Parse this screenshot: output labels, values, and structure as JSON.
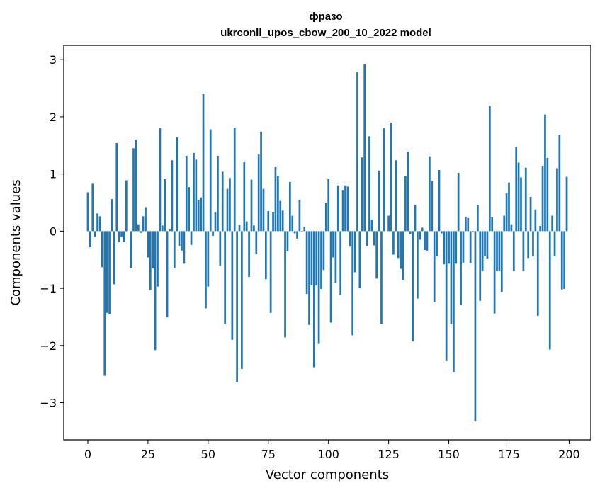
{
  "chart_data": {
    "type": "bar",
    "title": "фразо",
    "subtitle": "ukrconll_upos_cbow_200_10_2022 model",
    "xlabel": "Vector components",
    "ylabel": "Components values",
    "xlim": [
      -10,
      209
    ],
    "ylim": [
      -3.65,
      3.25
    ],
    "xticks": [
      0,
      25,
      50,
      75,
      100,
      125,
      150,
      175,
      200
    ],
    "yticks": [
      -3,
      -2,
      -1,
      0,
      1,
      2,
      3
    ],
    "ytick_labels": [
      "−3",
      "−2",
      "−1",
      "0",
      "1",
      "2",
      "3"
    ],
    "bar_color": "#1f77b4",
    "grid": false,
    "x": [
      0,
      1,
      2,
      3,
      4,
      5,
      6,
      7,
      8,
      9,
      10,
      11,
      12,
      13,
      14,
      15,
      16,
      17,
      18,
      19,
      20,
      21,
      22,
      23,
      24,
      25,
      26,
      27,
      28,
      29,
      30,
      31,
      32,
      33,
      34,
      35,
      36,
      37,
      38,
      39,
      40,
      41,
      42,
      43,
      44,
      45,
      46,
      47,
      48,
      49,
      50,
      51,
      52,
      53,
      54,
      55,
      56,
      57,
      58,
      59,
      60,
      61,
      62,
      63,
      64,
      65,
      66,
      67,
      68,
      69,
      70,
      71,
      72,
      73,
      74,
      75,
      76,
      77,
      78,
      79,
      80,
      81,
      82,
      83,
      84,
      85,
      86,
      87,
      88,
      89,
      90,
      91,
      92,
      93,
      94,
      95,
      96,
      97,
      98,
      99,
      100,
      101,
      102,
      103,
      104,
      105,
      106,
      107,
      108,
      109,
      110,
      111,
      112,
      113,
      114,
      115,
      116,
      117,
      118,
      119,
      120,
      121,
      122,
      123,
      124,
      125,
      126,
      127,
      128,
      129,
      130,
      131,
      132,
      133,
      134,
      135,
      136,
      137,
      138,
      139,
      140,
      141,
      142,
      143,
      144,
      145,
      146,
      147,
      148,
      149,
      150,
      151,
      152,
      153,
      154,
      155,
      156,
      157,
      158,
      159,
      160,
      161,
      162,
      163,
      164,
      165,
      166,
      167,
      168,
      169,
      170,
      171,
      172,
      173,
      174,
      175,
      176,
      177,
      178,
      179,
      180,
      181,
      182,
      183,
      184,
      185,
      186,
      187,
      188,
      189,
      190,
      191,
      192,
      193,
      194,
      195,
      196,
      197,
      198,
      199
    ],
    "values": [
      0.68,
      -0.28,
      0.83,
      -0.1,
      0.31,
      0.26,
      -0.63,
      -2.53,
      -1.43,
      -1.45,
      0.56,
      -0.93,
      1.54,
      -0.19,
      -0.1,
      -0.19,
      0.89,
      0.0,
      -0.64,
      1.45,
      1.6,
      0.12,
      -0.03,
      0.26,
      0.42,
      -0.46,
      -1.03,
      -0.65,
      -2.08,
      -0.97,
      1.8,
      0.1,
      0.91,
      -1.51,
      0.03,
      1.24,
      -0.65,
      1.64,
      -0.26,
      -0.34,
      -0.57,
      1.32,
      0.77,
      -0.24,
      1.37,
      1.25,
      0.55,
      0.59,
      2.4,
      -1.35,
      -0.97,
      1.78,
      -0.08,
      0.33,
      1.32,
      -0.6,
      1.04,
      -1.62,
      0.74,
      0.93,
      -1.9,
      1.8,
      -2.64,
      0.11,
      -2.41,
      1.21,
      0.17,
      -0.8,
      0.9,
      0.1,
      -0.4,
      1.34,
      1.74,
      0.74,
      -0.84,
      0.35,
      -1.43,
      0.33,
      1.12,
      0.96,
      0.53,
      0.36,
      -1.86,
      -0.35,
      0.86,
      0.27,
      -0.04,
      -0.13,
      0.55,
      -0.01,
      0.08,
      -1.1,
      -1.64,
      -0.95,
      -2.38,
      -0.95,
      -1.96,
      -1.01,
      -0.68,
      0.5,
      0.91,
      -1.6,
      -0.46,
      -0.9,
      0.8,
      -1.12,
      0.72,
      0.8,
      0.78,
      -0.27,
      -1.82,
      -0.72,
      2.78,
      -1.0,
      1.29,
      2.92,
      -0.26,
      1.66,
      0.2,
      -0.25,
      -0.83,
      1.06,
      -1.62,
      1.8,
      0.0,
      0.27,
      1.9,
      -0.41,
      1.24,
      -0.47,
      -0.66,
      -0.85,
      0.96,
      1.39,
      -0.05,
      -1.93,
      0.46,
      -1.18,
      -0.15,
      0.06,
      -0.33,
      -0.34,
      1.31,
      0.88,
      -1.24,
      -0.44,
      1.07,
      -0.04,
      -0.58,
      -2.26,
      -0.57,
      -1.63,
      -2.46,
      -0.57,
      1.02,
      -1.29,
      -0.55,
      0.25,
      0.23,
      -0.56,
      -0.02,
      -3.33,
      0.46,
      -1.22,
      -0.7,
      -0.43,
      -0.48,
      2.19,
      0.24,
      -1.44,
      -0.7,
      -0.69,
      -1.06,
      0.27,
      0.66,
      0.85,
      0.12,
      -0.7,
      1.47,
      1.2,
      0.94,
      -0.7,
      1.11,
      -0.47,
      0.6,
      -0.44,
      0.38,
      -1.48,
      0.09,
      1.14,
      2.04,
      1.28,
      -2.07,
      0.27,
      -0.44,
      1.1,
      1.68,
      -1.02,
      -1.01,
      0.95
    ]
  }
}
